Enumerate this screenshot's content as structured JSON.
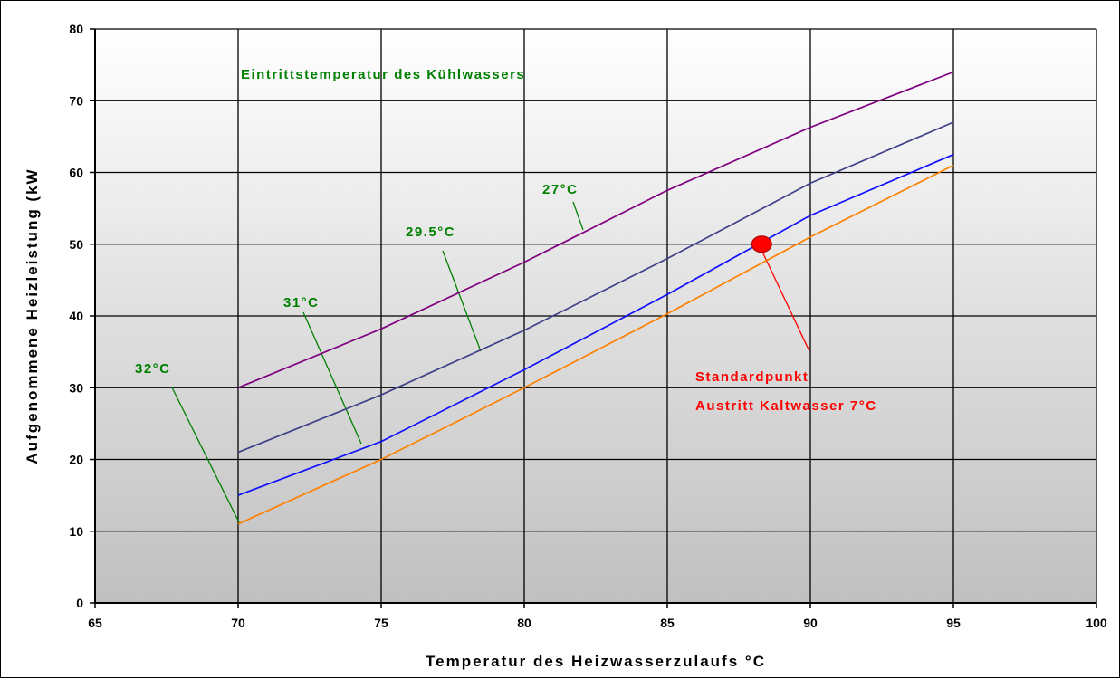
{
  "chart_data": {
    "type": "line",
    "title": "",
    "xlabel": "Temperatur des Heizwasserzulaufs °C",
    "ylabel": "Aufgenommene Heizleistung (kW",
    "xlim": [
      65,
      100
    ],
    "ylim": [
      0,
      80
    ],
    "x_ticks": [
      65,
      70,
      75,
      80,
      85,
      90,
      95,
      100
    ],
    "y_ticks": [
      0,
      10,
      20,
      30,
      40,
      50,
      60,
      70,
      80
    ],
    "grid": true,
    "legend": "none",
    "series": [
      {
        "name": "27°C",
        "color": "#800080",
        "x": [
          70,
          75,
          80,
          85,
          90,
          95
        ],
        "y": [
          30,
          38.2,
          47.5,
          57.5,
          66.3,
          74
        ]
      },
      {
        "name": "29.5°C",
        "color": "#40408a",
        "x": [
          70,
          75,
          80,
          85,
          90,
          95
        ],
        "y": [
          21,
          29,
          38,
          48,
          58.5,
          67
        ]
      },
      {
        "name": "31°C",
        "color": "#1010ff",
        "x": [
          70,
          75,
          80,
          85,
          90,
          95
        ],
        "y": [
          15,
          22.5,
          32.5,
          43,
          54,
          62.5
        ]
      },
      {
        "name": "32°C",
        "color": "#ff8000",
        "x": [
          70,
          75,
          80,
          85,
          90,
          95
        ],
        "y": [
          11,
          20,
          30,
          40.3,
          51,
          61
        ]
      }
    ],
    "annotations": [
      {
        "text": "Eintrittstemperatur des Kühlwassers",
        "color": "#008000"
      },
      {
        "text": "27°C",
        "color": "#008000"
      },
      {
        "text": "29.5°C",
        "color": "#008000"
      },
      {
        "text": "31°C",
        "color": "#008000"
      },
      {
        "text": "32°C",
        "color": "#008000"
      },
      {
        "text": "Standardpunkt",
        "color": "#ff0000"
      },
      {
        "text": "Austritt Kaltwasser 7°C",
        "color": "#ff0000"
      }
    ],
    "marker": {
      "label": "Standardpunkt",
      "x": 88.3,
      "y": 50,
      "color": "#ff0000"
    }
  }
}
